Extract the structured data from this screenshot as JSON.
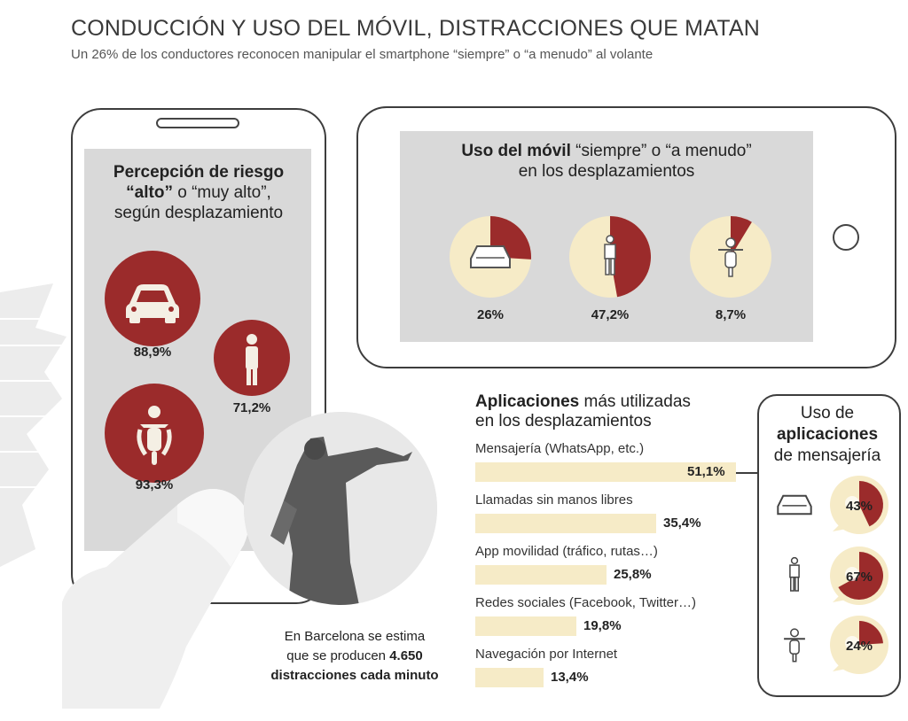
{
  "header": {
    "title": "CONDUCCIÓN Y USO DEL MÓVIL, DISTRACCIONES QUE MATAN",
    "subtitle": "Un 26% de los conductores reconocen manipular el smartphone “siempre” o “a menudo” al volante"
  },
  "risk_panel": {
    "title_bold_1": "Percepción de riesgo",
    "title_bold_2": "“alto”",
    "title_rest_2": " o “muy alto”,",
    "title_line_3": "según desplazamiento"
  },
  "usage_panel": {
    "title_bold": "Uso del móvil",
    "title_rest_1": " “siempre” o “a menudo”",
    "title_line_2": "en los desplazamientos"
  },
  "apps_panel": {
    "title_bold": "Aplicaciones",
    "title_rest_1": " más utilizadas",
    "title_line_2": "en los desplazamientos"
  },
  "messaging_panel": {
    "title_line_1": "Uso de",
    "title_bold_2": "aplicaciones",
    "title_line_3": "de mensajería"
  },
  "note": {
    "line_1": "En Barcelona se estima",
    "line_2_pre": "que se producen ",
    "line_2_bold": "4.650",
    "line_3_bold": "distracciones cada minuto"
  },
  "colors": {
    "dark_red": "#9b2b2b",
    "cream": "#f6ebc7",
    "screen_gray": "#d9d9d9"
  },
  "chart_data": [
    {
      "type": "bubble",
      "title": "Percepción de riesgo “alto” o “muy alto”, según desplazamiento",
      "categories": [
        "car-icon",
        "pedestrian-icon",
        "motorcycle-icon"
      ],
      "values": [
        88.9,
        71.2,
        93.3
      ],
      "labels": [
        "88,9%",
        "71,2%",
        "93,3%"
      ]
    },
    {
      "type": "pie",
      "title": "Uso del móvil “siempre” o “a menudo” en los desplazamientos",
      "categories": [
        "car-icon",
        "pedestrian-icon",
        "motorcycle-icon"
      ],
      "values": [
        26,
        47.2,
        8.7
      ],
      "labels": [
        "26%",
        "47,2%",
        "8,7%"
      ]
    },
    {
      "type": "bar",
      "title": "Aplicaciones más utilizadas en los desplazamientos",
      "categories": [
        "Mensajería (WhatsApp, etc.)",
        "Llamadas sin manos libres",
        "App movilidad (tráfico, rutas…)",
        "Redes sociales (Facebook, Twitter…)",
        "Navegación por Internet"
      ],
      "values": [
        51.1,
        35.4,
        25.8,
        19.8,
        13.4
      ],
      "labels": [
        "51,1%",
        "35,4%",
        "25,8%",
        "19,8%",
        "13,4%"
      ]
    },
    {
      "type": "pie",
      "title": "Uso de aplicaciones de mensajería",
      "categories": [
        "car-icon",
        "pedestrian-icon",
        "motorcycle-icon"
      ],
      "values": [
        43,
        67,
        24
      ],
      "labels": [
        "43%",
        "67%",
        "24%"
      ]
    }
  ]
}
